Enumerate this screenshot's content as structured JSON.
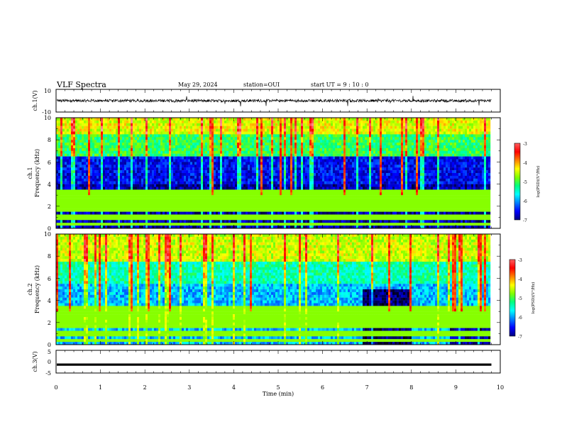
{
  "header": {
    "title": "VLF Spectra",
    "date": "May 29, 2024",
    "station": "station=OUI",
    "start": "start UT =  9 : 10 : 0"
  },
  "colors": {
    "colormap": [
      "#000000",
      "#00007f",
      "#0000ff",
      "#0080ff",
      "#00ffff",
      "#00ff80",
      "#80ff00",
      "#ffff00",
      "#ff8000",
      "#ff0000",
      "#ff6060",
      "#ffffff"
    ],
    "trace": "#000000"
  },
  "chart_data": [
    {
      "type": "line",
      "panel": "ch1-waveform",
      "ylabel": "ch.1(V)",
      "ylim": [
        -10,
        10
      ],
      "yticks": [
        "10",
        "-10"
      ],
      "xlim": [
        0,
        10
      ],
      "description_level": "noisy waveform centered near 0 V, amplitude about ±3 V with occasional spikes"
    },
    {
      "type": "heatmap",
      "panel": "ch1-spectrogram",
      "ylabel": "ch.1\nFrequency (kHz)",
      "ylabel_lines": [
        "ch.1",
        "Frequency (kHz)"
      ],
      "ylim": [
        0,
        10
      ],
      "yticks": [
        "0",
        "2",
        "4",
        "6",
        "8",
        "10"
      ],
      "xlim": [
        0,
        10
      ],
      "colorbar": {
        "label": "log(PSD)(V²/Hz)",
        "range": [
          -7,
          -3
        ],
        "ticks": [
          "-3",
          "-4",
          "-5",
          "-6",
          "-7"
        ]
      },
      "data_end_min": 9.8
    },
    {
      "type": "heatmap",
      "panel": "ch2-spectrogram",
      "ylabel": "ch.2\nFrequency (kHz)",
      "ylabel_lines": [
        "ch.2",
        "Frequency (kHz)"
      ],
      "ylim": [
        0,
        10
      ],
      "yticks": [
        "0",
        "2",
        "4",
        "6",
        "8",
        "10"
      ],
      "xlim": [
        0,
        10
      ],
      "colorbar": {
        "label": "log(PSD)(V²/Hz)",
        "range": [
          -7,
          -3
        ],
        "ticks": [
          "-3",
          "-4",
          "-5",
          "-6",
          "-7"
        ]
      },
      "data_end_min": 9.8
    },
    {
      "type": "line",
      "panel": "ch3-waveform",
      "ylabel": "ch.3(V)",
      "ylim": [
        -5,
        5
      ],
      "yticks": [
        "5",
        "0",
        "-5"
      ],
      "xlim": [
        0,
        10
      ],
      "constant_value": -1.3,
      "xlabel": "Time (min)",
      "xticks": [
        "0",
        "1",
        "2",
        "3",
        "4",
        "5",
        "6",
        "7",
        "8",
        "9",
        "10"
      ]
    }
  ]
}
